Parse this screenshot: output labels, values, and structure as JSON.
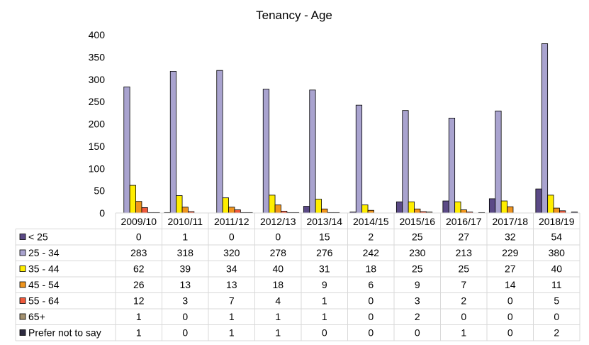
{
  "chart_data": {
    "type": "bar",
    "title": "Tenancy - Age",
    "categories": [
      "2009/10",
      "2010/11",
      "2011/12",
      "2012/13",
      "2013/14",
      "2014/15",
      "2015/16",
      "2016/17",
      "2017/18",
      "2018/19"
    ],
    "ylim": [
      0,
      400
    ],
    "yticks": [
      0,
      50,
      100,
      150,
      200,
      250,
      300,
      350,
      400
    ],
    "grid": false,
    "legend_placement": "bottom data table",
    "series": [
      {
        "name": "< 25",
        "color": "#5b4a86",
        "values": [
          0,
          1,
          0,
          0,
          15,
          2,
          25,
          27,
          32,
          54
        ]
      },
      {
        "name": "25 - 34",
        "color": "#a9a3cf",
        "values": [
          283,
          318,
          320,
          278,
          276,
          242,
          230,
          213,
          229,
          380
        ]
      },
      {
        "name": "35 - 44",
        "color": "#ffee00",
        "values": [
          62,
          39,
          34,
          40,
          31,
          18,
          25,
          25,
          27,
          40
        ]
      },
      {
        "name": "45 - 54",
        "color": "#f0951e",
        "values": [
          26,
          13,
          13,
          18,
          9,
          6,
          9,
          7,
          14,
          11
        ]
      },
      {
        "name": "55 - 64",
        "color": "#ef5a3c",
        "values": [
          12,
          3,
          7,
          4,
          1,
          0,
          3,
          2,
          0,
          5
        ]
      },
      {
        "name": "65+",
        "color": "#a39170",
        "values": [
          1,
          0,
          1,
          1,
          1,
          0,
          2,
          0,
          0,
          0
        ]
      },
      {
        "name": "Prefer not to say",
        "color": "#2d2a40",
        "values": [
          1,
          0,
          1,
          1,
          0,
          0,
          0,
          1,
          0,
          2
        ]
      }
    ]
  }
}
